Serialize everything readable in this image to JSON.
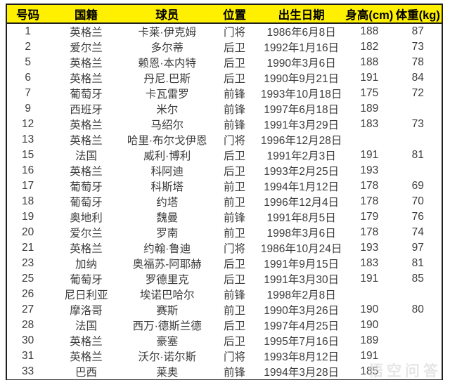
{
  "colors": {
    "header_bg": "#fff000",
    "header_text": "#000000",
    "body_text": "#3c3c3c",
    "border": "#1f1f1f",
    "page_bg": "#ffffff"
  },
  "watermark": {
    "text": "悟空问答"
  },
  "table": {
    "headers": [
      "号码",
      "国籍",
      "球员",
      "位置",
      "出生日期",
      "身高(cm)",
      "体重(kg)"
    ],
    "rows": [
      [
        "1",
        "英格兰",
        "卡莱·伊克姆",
        "门将",
        "1986年6月8日",
        "188",
        "87"
      ],
      [
        "2",
        "爱尔兰",
        "多尔蒂",
        "后卫",
        "1992年1月16日",
        "182",
        "73"
      ],
      [
        "5",
        "英格兰",
        "赖恩·本内特",
        "后卫",
        "1990年3月6日",
        "188",
        "78"
      ],
      [
        "6",
        "英格兰",
        "丹尼.巴斯",
        "后卫",
        "1990年9月21日",
        "191",
        "84"
      ],
      [
        "7",
        "葡萄牙",
        "卡瓦雷罗",
        "前锋",
        "1993年10月18日",
        "175",
        "72"
      ],
      [
        "9",
        "西班牙",
        "米尔",
        "前锋",
        "1997年6月18日",
        "189",
        ""
      ],
      [
        "12",
        "英格兰",
        "马绍尔",
        "前锋",
        "1991年3月29日",
        "183",
        "73"
      ],
      [
        "13",
        "英格兰",
        "哈里·布尔戈伊恩",
        "门将",
        "1996年12月28日",
        "",
        ""
      ],
      [
        "15",
        "法国",
        "威利·博利",
        "后卫",
        "1991年2月3日",
        "191",
        "81"
      ],
      [
        "16",
        "英格兰",
        "科阿迪",
        "后卫",
        "1993年2月25日",
        "193",
        ""
      ],
      [
        "17",
        "葡萄牙",
        "科斯塔",
        "前卫",
        "1994年1月12日",
        "178",
        "69"
      ],
      [
        "18",
        "葡萄牙",
        "约塔",
        "前卫",
        "1996年12月4日",
        "178",
        "70"
      ],
      [
        "19",
        "奥地利",
        "魏曼",
        "前锋",
        "1991年8月5日",
        "179",
        "76"
      ],
      [
        "20",
        "爱尔兰",
        "罗南",
        "前卫",
        "1998年3月6日",
        "178",
        "74"
      ],
      [
        "21",
        "英格兰",
        "约翰·鲁迪",
        "门将",
        "1986年10月24日",
        "193",
        "97"
      ],
      [
        "23",
        "加纳",
        "奥福苏-阿耶赫",
        "后卫",
        "1991年9月15日",
        "183",
        "81"
      ],
      [
        "25",
        "葡萄牙",
        "罗德里克",
        "后卫",
        "1991年3月30日",
        "191",
        "85"
      ],
      [
        "26",
        "尼日利亚",
        "埃诺巴哈尔",
        "前锋",
        "1998年2月8日",
        "",
        ""
      ],
      [
        "27",
        "摩洛哥",
        "赛斯",
        "前卫",
        "1990年3月26日",
        "190",
        "80"
      ],
      [
        "28",
        "法国",
        "西万·德斯兰德",
        "后卫",
        "1997年4月25日",
        "190",
        ""
      ],
      [
        "30",
        "英格兰",
        "豪塞",
        "后卫",
        "1995年7月16日",
        "189",
        ""
      ],
      [
        "31",
        "英格兰",
        "沃尔·诺尔斯",
        "门将",
        "1993年8月12日",
        "191",
        ""
      ],
      [
        "33",
        "巴西",
        "莱奥",
        "前锋",
        "1994年3月28日",
        "185",
        ""
      ]
    ]
  }
}
